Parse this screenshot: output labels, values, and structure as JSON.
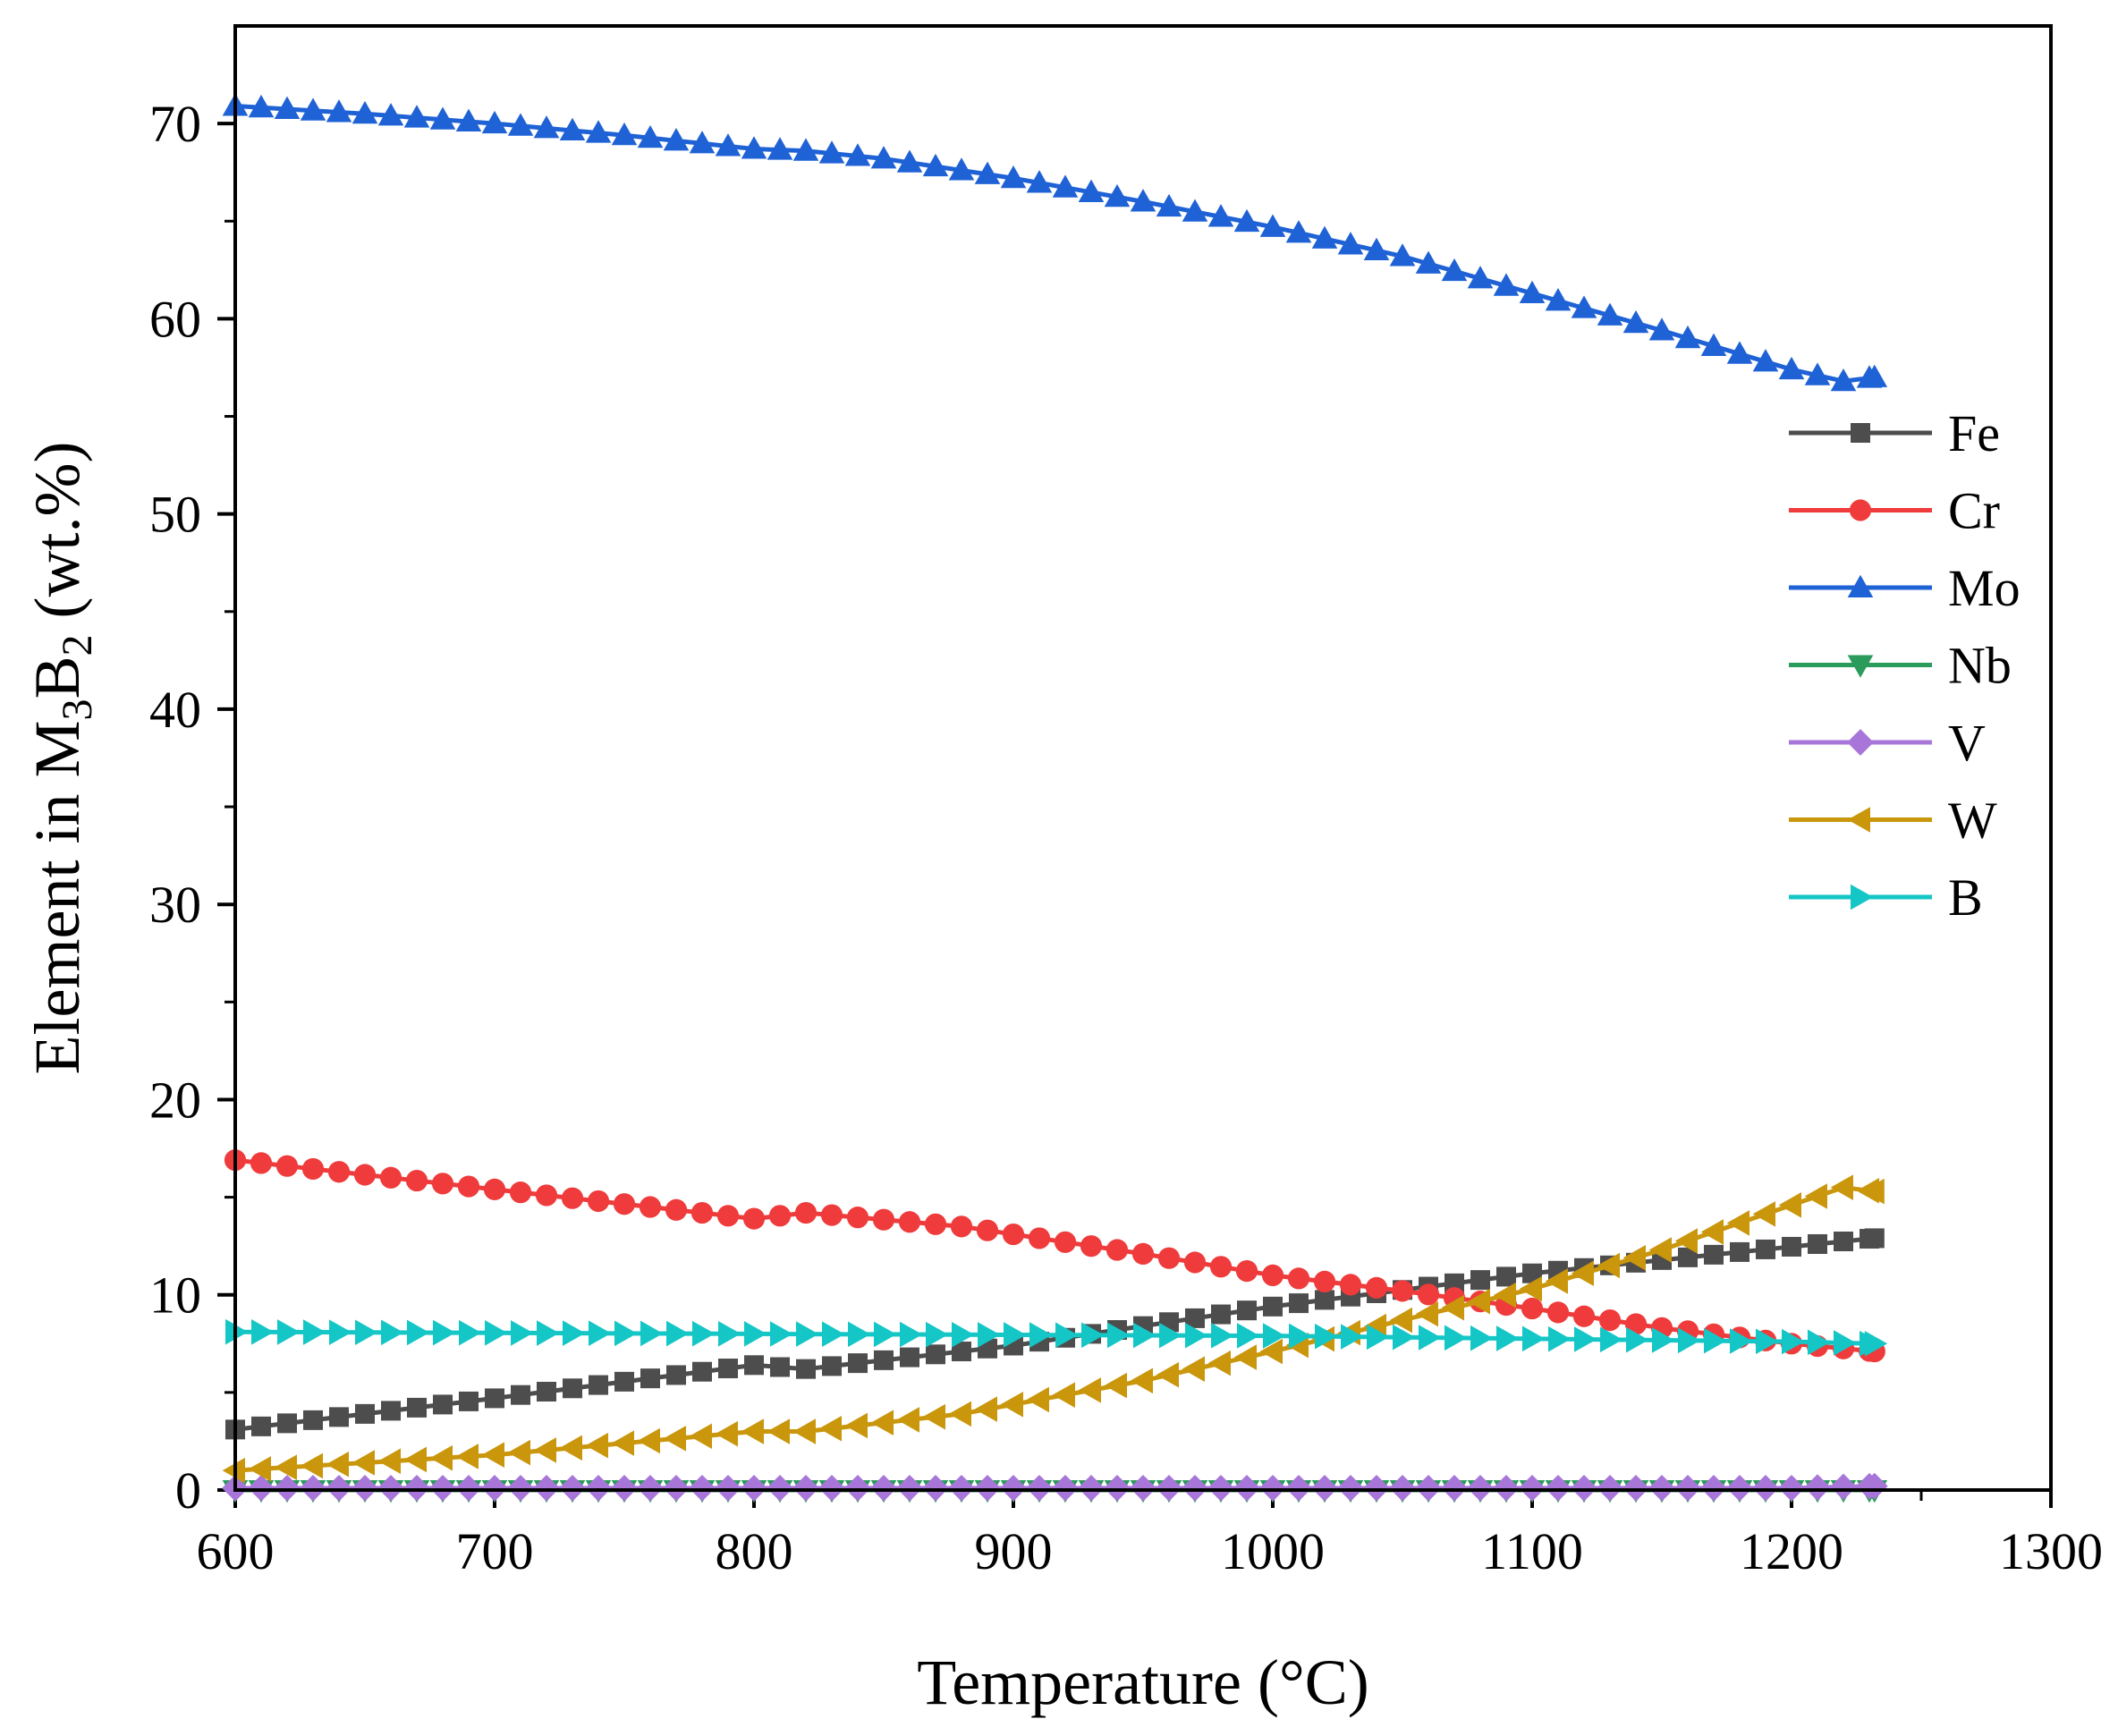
{
  "chart_data": {
    "type": "line",
    "title": "",
    "xlabel": "Temperature (°C)",
    "ylabel": {
      "prefix": "Element in M",
      "sub1": "3",
      "mid": "B",
      "sub2": "2",
      "suffix": " (wt.%)"
    },
    "xlim": [
      600,
      1300
    ],
    "ylim": [
      0,
      75
    ],
    "x_ticks": [
      600,
      700,
      800,
      900,
      1000,
      1100,
      1200,
      1300
    ],
    "y_ticks": [
      0,
      10,
      20,
      30,
      40,
      50,
      60,
      70
    ],
    "x_tick_labels": [
      "600",
      "700",
      "800",
      "900",
      "1000",
      "1100",
      "1200",
      "1300"
    ],
    "y_tick_labels": [
      "0",
      "10",
      "20",
      "30",
      "40",
      "50",
      "60",
      "70"
    ],
    "legend_position": "right",
    "x_range": [
      600,
      1232
    ],
    "x_step": 10,
    "series": [
      {
        "name": "Fe",
        "color": "#4d4d4d",
        "marker": "square",
        "points": [
          [
            600,
            3.1
          ],
          [
            700,
            4.7
          ],
          [
            800,
            6.4
          ],
          [
            820,
            6.2
          ],
          [
            900,
            7.4
          ],
          [
            1000,
            9.4
          ],
          [
            1100,
            11.1
          ],
          [
            1232,
            12.9
          ]
        ]
      },
      {
        "name": "Cr",
        "color": "#ef3b3b",
        "marker": "circle",
        "points": [
          [
            600,
            16.9
          ],
          [
            700,
            15.4
          ],
          [
            800,
            13.9
          ],
          [
            820,
            14.2
          ],
          [
            880,
            13.5
          ],
          [
            950,
            12.1
          ],
          [
            1000,
            11.0
          ],
          [
            1050,
            10.2
          ],
          [
            1100,
            9.3
          ],
          [
            1150,
            8.3
          ],
          [
            1200,
            7.5
          ],
          [
            1232,
            7.1
          ]
        ]
      },
      {
        "name": "Mo",
        "color": "#1f62d6",
        "marker": "triangle-up",
        "points": [
          [
            600,
            70.9
          ],
          [
            650,
            70.5
          ],
          [
            700,
            70.0
          ],
          [
            750,
            69.4
          ],
          [
            800,
            68.7
          ],
          [
            820,
            68.6
          ],
          [
            850,
            68.2
          ],
          [
            880,
            67.6
          ],
          [
            900,
            67.2
          ],
          [
            950,
            66.0
          ],
          [
            1000,
            64.7
          ],
          [
            1050,
            63.2
          ],
          [
            1100,
            61.3
          ],
          [
            1150,
            59.4
          ],
          [
            1200,
            57.4
          ],
          [
            1220,
            56.8
          ],
          [
            1232,
            57.0
          ]
        ]
      },
      {
        "name": "Nb",
        "color": "#2a9b5a",
        "marker": "triangle-down",
        "points": [
          [
            600,
            0.0
          ],
          [
            1232,
            0.0
          ]
        ]
      },
      {
        "name": "V",
        "color": "#a776d8",
        "marker": "diamond",
        "points": [
          [
            600,
            0.1
          ],
          [
            1200,
            0.1
          ],
          [
            1232,
            0.2
          ]
        ]
      },
      {
        "name": "W",
        "color": "#c9960c",
        "marker": "triangle-left",
        "points": [
          [
            600,
            1.0
          ],
          [
            700,
            1.8
          ],
          [
            800,
            3.0
          ],
          [
            820,
            3.0
          ],
          [
            880,
            3.9
          ],
          [
            950,
            5.6
          ],
          [
            1000,
            7.1
          ],
          [
            1050,
            8.7
          ],
          [
            1100,
            10.3
          ],
          [
            1150,
            12.3
          ],
          [
            1200,
            14.6
          ],
          [
            1220,
            15.5
          ],
          [
            1232,
            15.3
          ]
        ]
      },
      {
        "name": "B",
        "color": "#15c6c6",
        "marker": "triangle-right",
        "points": [
          [
            600,
            8.1
          ],
          [
            800,
            8.0
          ],
          [
            1000,
            7.9
          ],
          [
            1200,
            7.6
          ],
          [
            1232,
            7.5
          ]
        ]
      }
    ]
  }
}
